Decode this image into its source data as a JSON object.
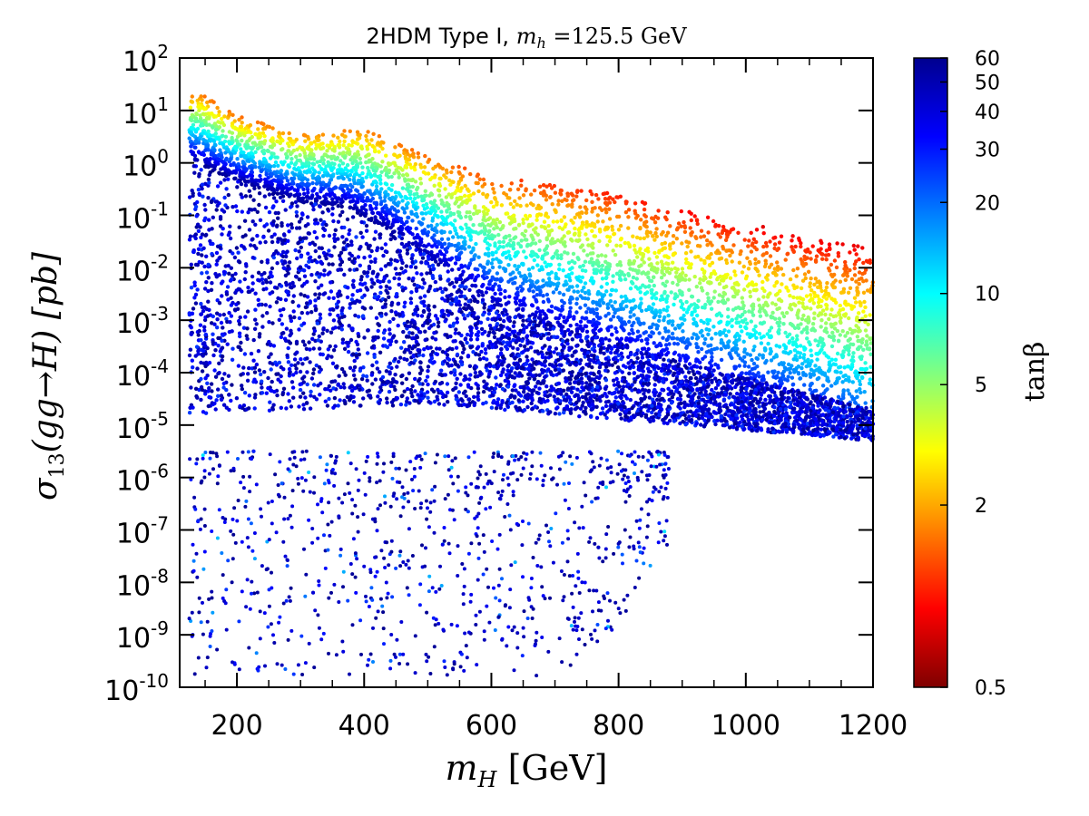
{
  "chart_data": {
    "type": "scatter",
    "title": {
      "text": "2HDM Type I, ",
      "math_var": "m",
      "math_sub": "h",
      "math_rest": " =125.5 GeV"
    },
    "xlabel": {
      "var": "m",
      "sub": "H",
      "unit": " [GeV]"
    },
    "ylabel": {
      "text": "σ",
      "sub": "13",
      "rest": "(gg→H) [pb]"
    },
    "colorbar_label": "tanβ",
    "x_axis": {
      "range": [
        110,
        1200
      ],
      "ticks": [
        200,
        400,
        600,
        800,
        1000,
        1200
      ],
      "tick_labels": [
        "200",
        "400",
        "600",
        "800",
        "1000",
        "1200"
      ],
      "minor_step": 50
    },
    "y_axis": {
      "scale": "log",
      "range_exp": [
        -10,
        2
      ],
      "tick_exponents": [
        -10,
        -9,
        -8,
        -7,
        -6,
        -5,
        -4,
        -3,
        -2,
        -1,
        0,
        1,
        2
      ],
      "tick_base": "10",
      "tick_exp_labels": [
        "-10",
        "-9",
        "-8",
        "-7",
        "-6",
        "-5",
        "-4",
        "-3",
        "-2",
        "-1",
        "0",
        "1",
        "2"
      ]
    },
    "colorbar": {
      "scale": "log",
      "range": [
        0.5,
        60
      ],
      "tick_values": [
        0.5,
        2,
        5,
        10,
        20,
        30,
        40,
        50,
        60
      ],
      "tick_labels": [
        "0.5",
        "2",
        "5",
        "10",
        "20",
        "30",
        "40",
        "50",
        "60"
      ],
      "colormap": [
        "#7f0000",
        "#ff0000",
        "#ff8000",
        "#ffff00",
        "#80ff80",
        "#00ffff",
        "#0080ff",
        "#0000ff",
        "#00008f"
      ]
    },
    "series": [
      {
        "name": "parameter scan points",
        "description_of_regions": "dense sampled points",
        "upper_envelope": {
          "x": [
            125,
            140,
            200,
            300,
            400,
            500,
            600,
            700,
            800,
            900,
            1000,
            1100,
            1200
          ],
          "log10_y": [
            1.3,
            1.35,
            0.9,
            0.55,
            0.65,
            0.15,
            -0.25,
            -0.4,
            -0.6,
            -0.9,
            -1.15,
            -1.4,
            -1.6
          ],
          "tanb": [
            1.5,
            1.5,
            1.5,
            1.6,
            1.6,
            1.4,
            1.2,
            1.1,
            1.0,
            0.9,
            0.8,
            0.8,
            0.8
          ]
        },
        "dense_band_upper": {
          "x": [
            125,
            200,
            300,
            370,
            450,
            550,
            600,
            700,
            800,
            900,
            1000,
            1100,
            1200
          ],
          "log10_y": [
            0.05,
            -0.35,
            -0.75,
            -0.85,
            -1.35,
            -2.2,
            -2.7,
            -3.1,
            -3.45,
            -3.8,
            -4.1,
            -4.4,
            -4.7
          ],
          "tanb": [
            60,
            60,
            60,
            60,
            55,
            50,
            50,
            45,
            40,
            35,
            30,
            25,
            20
          ]
        },
        "dense_band_lower": {
          "x": [
            125,
            300,
            500,
            700,
            900,
            1100,
            1200
          ],
          "log10_y": [
            -4.8,
            -4.7,
            -4.6,
            -4.8,
            -5.0,
            -5.2,
            -5.3
          ],
          "tanb": [
            40,
            40,
            45,
            40,
            35,
            30,
            30
          ]
        },
        "sparse_tail": {
          "x_range": [
            125,
            880
          ],
          "log10_y_range": [
            -9.8,
            -5.5
          ],
          "tanb_range": [
            10,
            60
          ]
        }
      }
    ]
  }
}
